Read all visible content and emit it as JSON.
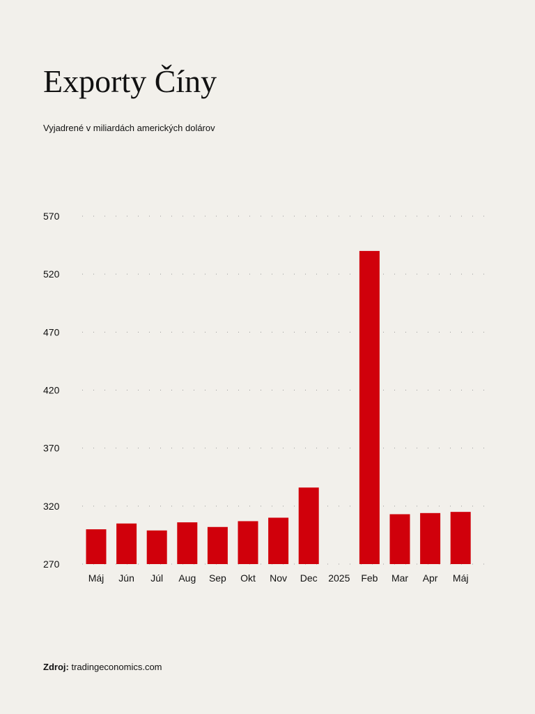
{
  "title": "Exporty Číny",
  "subtitle": "Vyjadrené v miliardách amerických dolárov",
  "source": {
    "label": "Zdroj:",
    "text": "tradingeconomics.com"
  },
  "colors": {
    "bar": "#d0000b",
    "background": "#f2f0eb",
    "grid": "#999999"
  },
  "chart_data": {
    "type": "bar",
    "categories": [
      "Máj",
      "Jún",
      "Júl",
      "Aug",
      "Sep",
      "Okt",
      "Nov",
      "Dec",
      "2025",
      "Feb",
      "Mar",
      "Apr",
      "Máj"
    ],
    "values": [
      300,
      305,
      299,
      306,
      302,
      307,
      310,
      336,
      null,
      540,
      313,
      314,
      315
    ],
    "title": "Exporty Číny",
    "xlabel": "",
    "ylabel": "",
    "ylim": [
      270,
      570
    ],
    "yticks": [
      570,
      520,
      470,
      420,
      370,
      320,
      270
    ],
    "grid": true,
    "grid_style": "dotted"
  }
}
